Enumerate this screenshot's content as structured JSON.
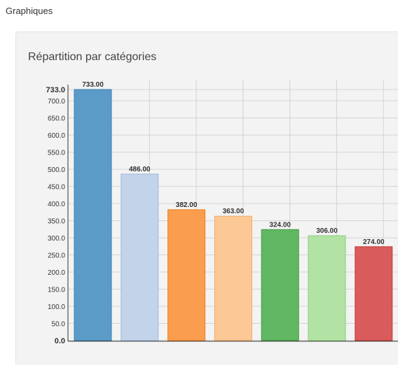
{
  "header": {
    "title": "Graphiques"
  },
  "panel": {
    "title": "Répartition par catégories"
  },
  "chart_data": {
    "type": "bar",
    "title": "Répartition par catégories",
    "xlabel": "",
    "ylabel": "",
    "ylim": [
      0,
      733
    ],
    "yticks": [
      "0.0",
      "50.0",
      "100.0",
      "150.0",
      "200.0",
      "250.0",
      "300.0",
      "350.0",
      "400.0",
      "450.0",
      "500.0",
      "550.0",
      "600.0",
      "650.0",
      "700.0",
      "733.0"
    ],
    "grid": true,
    "values": [
      733,
      486,
      382,
      363,
      324,
      306,
      274
    ],
    "value_labels": [
      "733.00",
      "486.00",
      "382.00",
      "363.00",
      "324.00",
      "306.00",
      "274.00"
    ],
    "colors": [
      {
        "fill": "#5b9bc8",
        "stroke": "#3d7fb0"
      },
      {
        "fill": "#c3d3ea",
        "stroke": "#9fb8dc"
      },
      {
        "fill": "#fb9d4e",
        "stroke": "#ee7d1e"
      },
      {
        "fill": "#fcc896",
        "stroke": "#f0ab66"
      },
      {
        "fill": "#62b762",
        "stroke": "#3f9a3f"
      },
      {
        "fill": "#b3e2a5",
        "stroke": "#8ccd7c"
      },
      {
        "fill": "#d95b5b",
        "stroke": "#c03b3b"
      }
    ]
  }
}
